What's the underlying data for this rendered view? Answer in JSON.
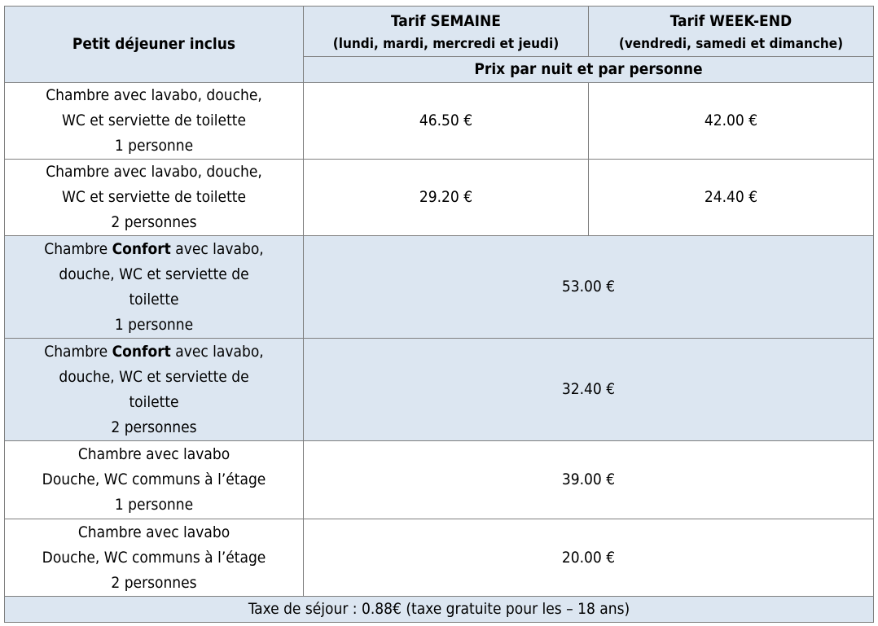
{
  "table": {
    "header": {
      "label": "Petit déjeuner inclus",
      "columns": [
        {
          "title": "Tarif SEMAINE",
          "subtitle": "(lundi, mardi, mercredi et jeudi)"
        },
        {
          "title": "Tarif WEEK-END",
          "subtitle": "(vendredi, samedi et dimanche)"
        }
      ],
      "unit": "Prix par nuit et par personne"
    },
    "rows": [
      {
        "lines": [
          [
            "Chambre avec lavabo, douche,"
          ],
          [
            "WC et serviette de toilette"
          ],
          [
            "1 personne"
          ]
        ],
        "prices": [
          "46.50 €",
          "42.00 €"
        ]
      },
      {
        "lines": [
          [
            "Chambre avec lavabo, douche,"
          ],
          [
            "WC et serviette de toilette"
          ],
          [
            "2 personnes"
          ]
        ],
        "prices": [
          "29.20 €",
          "24.40 €"
        ]
      },
      {
        "lines": [
          [
            "Chambre ",
            {
              "bold": "Confort"
            },
            " avec lavabo,"
          ],
          [
            "douche, WC et serviette de"
          ],
          [
            "toilette"
          ],
          [
            "1 personne"
          ]
        ],
        "prices": [
          "53.00 €"
        ],
        "highlight": true
      },
      {
        "lines": [
          [
            "Chambre ",
            {
              "bold": "Confort"
            },
            " avec lavabo,"
          ],
          [
            "douche, WC et serviette de"
          ],
          [
            "toilette"
          ],
          [
            "2 personnes"
          ]
        ],
        "prices": [
          "32.40 €"
        ],
        "highlight": true
      },
      {
        "lines": [
          [
            "Chambre avec lavabo"
          ],
          [
            "Douche, WC communs à l’étage"
          ],
          [
            "1 personne"
          ]
        ],
        "prices": [
          "39.00 €"
        ]
      },
      {
        "lines": [
          [
            "Chambre avec lavabo"
          ],
          [
            "Douche, WC communs à l’étage"
          ],
          [
            "2 personnes"
          ]
        ],
        "prices": [
          "20.00 €"
        ]
      }
    ],
    "footer": "Taxe de séjour : 0.88€ (taxe gratuite pour les – 18 ans)",
    "highlight_color": "#dce6f1"
  }
}
